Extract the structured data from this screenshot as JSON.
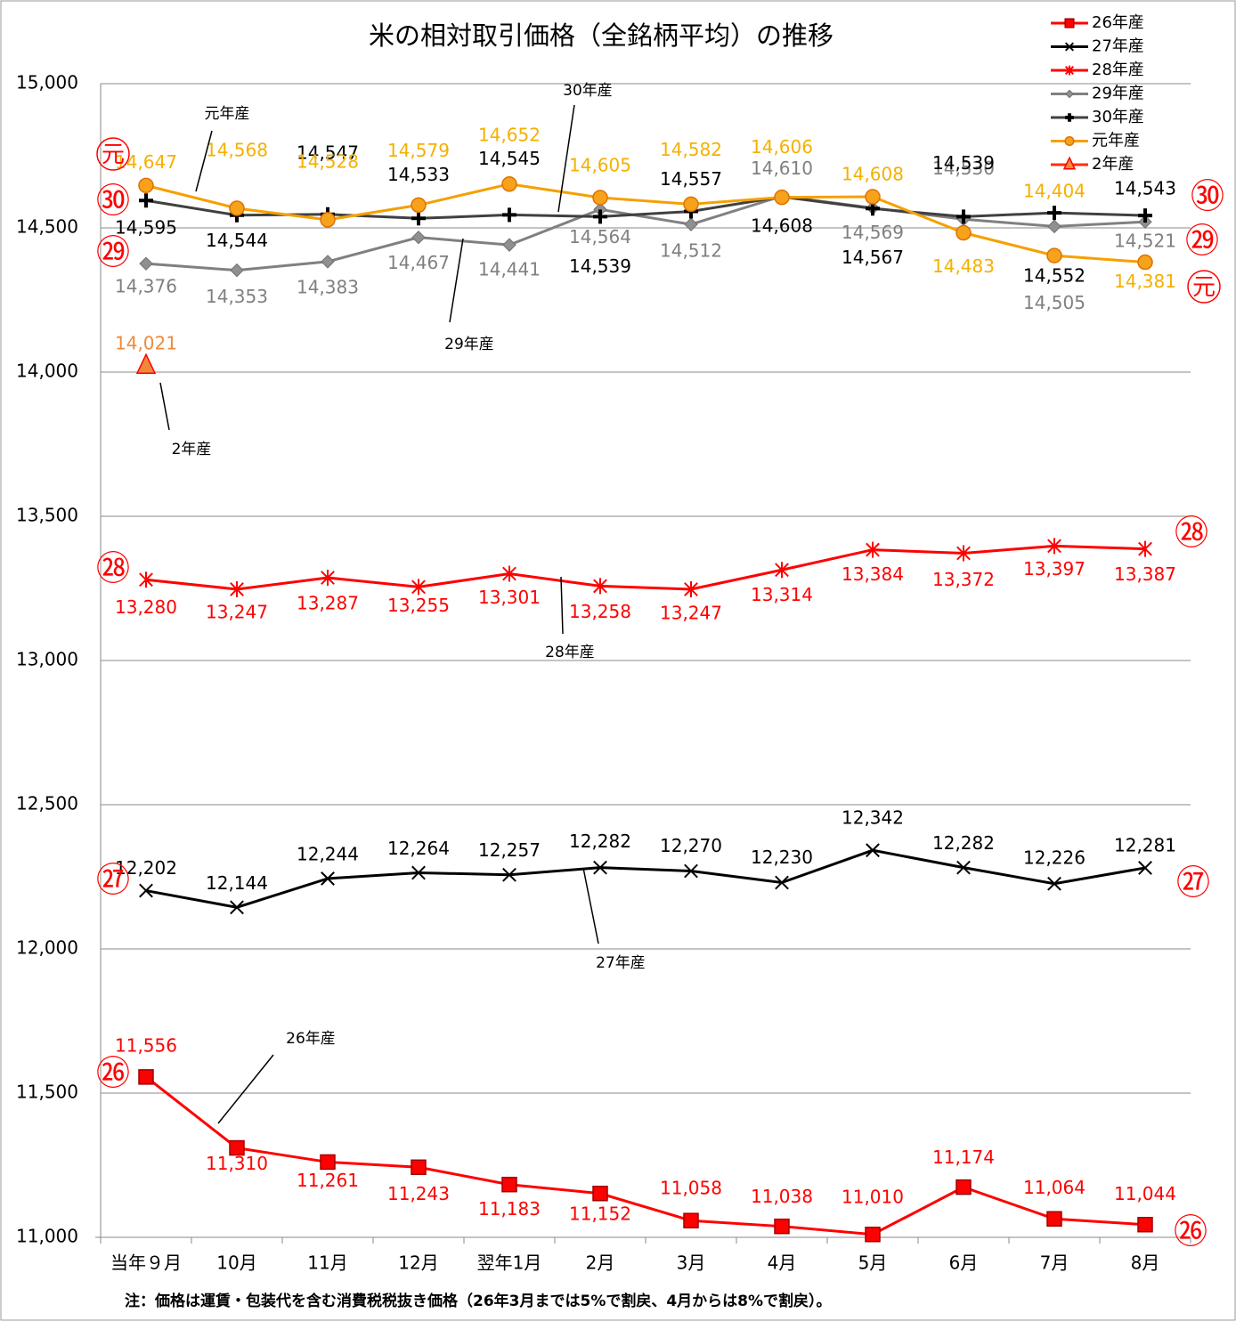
{
  "chart_data": {
    "type": "line",
    "title": "米の相対取引価格（全銘柄平均）の推移",
    "note": "注：価格は運賃・包装代を含む消費税税抜き価格（26年3月までは5%で割戻、4月からは8%で割戻）。",
    "categories": [
      "当年９月",
      "10月",
      "11月",
      "12月",
      "翌年1月",
      "2月",
      "3月",
      "4月",
      "5月",
      "6月",
      "7月",
      "8月"
    ],
    "ylim": [
      11000,
      15000
    ],
    "yticks": [
      {
        "value": 11000,
        "label": "11,000"
      },
      {
        "value": 11500,
        "label": "11,500"
      },
      {
        "value": 12000,
        "label": "12,000"
      },
      {
        "value": 12500,
        "label": "12,500"
      },
      {
        "value": 13000,
        "label": "13,000"
      },
      {
        "value": 13500,
        "label": "13,500"
      },
      {
        "value": 14000,
        "label": "14,000"
      },
      {
        "value": 14500,
        "label": "14,500"
      },
      {
        "value": 15000,
        "label": "15,000"
      }
    ],
    "grid": true,
    "legend": "top-right",
    "series": [
      {
        "name": "26年産",
        "color": "#ff0000",
        "label_color": "#ff0000",
        "marker": "square",
        "values": [
          11556,
          11310,
          11261,
          11243,
          11183,
          11152,
          11058,
          11038,
          11010,
          11174,
          11064,
          11044
        ],
        "value_labels": [
          "11,556",
          "11,310",
          "11,261",
          "11,243",
          "11,183",
          "11,152",
          "11,058",
          "11,038",
          "11,010",
          "11,174",
          "11,064",
          "11,044"
        ]
      },
      {
        "name": "27年産",
        "color": "#000000",
        "label_color": "#000000",
        "marker": "x",
        "values": [
          12202,
          12144,
          12244,
          12264,
          12257,
          12282,
          12270,
          12230,
          12342,
          12282,
          12226,
          12281
        ],
        "value_labels": [
          "12,202",
          "12,144",
          "12,244",
          "12,264",
          "12,257",
          "12,282",
          "12,270",
          "12,230",
          "12,342",
          "12,282",
          "12,226",
          "12,281"
        ]
      },
      {
        "name": "28年産",
        "color": "#ff0000",
        "label_color": "#ff0000",
        "marker": "asterisk",
        "values": [
          13280,
          13247,
          13287,
          13255,
          13301,
          13258,
          13247,
          13314,
          13384,
          13372,
          13397,
          13387
        ],
        "value_labels": [
          "13,280",
          "13,247",
          "13,287",
          "13,255",
          "13,301",
          "13,258",
          "13,247",
          "13,314",
          "13,384",
          "13,372",
          "13,397",
          "13,387"
        ]
      },
      {
        "name": "29年産",
        "color": "#808080",
        "label_color": "#808080",
        "marker": "diamond",
        "values": [
          14376,
          14353,
          14383,
          14467,
          14441,
          14564,
          14512,
          14610,
          14569,
          14530,
          14505,
          14521
        ],
        "value_labels": [
          "14,376",
          "14,353",
          "14,383",
          "14,467",
          "14,441",
          "14,564",
          "14,512",
          "14,610",
          "14,569",
          "14,530",
          "14,505",
          "14,521"
        ]
      },
      {
        "name": "30年産",
        "color": "#404040",
        "label_color": "#000000",
        "marker": "plus",
        "values": [
          14595,
          14544,
          14547,
          14533,
          14545,
          14539,
          14557,
          14608,
          14567,
          14539,
          14552,
          14543
        ],
        "value_labels": [
          "14,595",
          "14,544",
          "14,547",
          "14,533",
          "14,545",
          "14,539",
          "14,557",
          "14,608",
          "14,567",
          "14,539",
          "14,552",
          "14,543"
        ]
      },
      {
        "name": "元年産",
        "color": "#f5a000",
        "label_color": "#f5b000",
        "marker": "circle",
        "values": [
          14647,
          14568,
          14528,
          14579,
          14652,
          14605,
          14582,
          14606,
          14608,
          14483,
          14404,
          14381
        ],
        "value_labels": [
          "14,647",
          "14,568",
          "14,528",
          "14,579",
          "14,652",
          "14,605",
          "14,582",
          "14,606",
          "14,608",
          "14,483",
          "14,404",
          "14,381"
        ]
      },
      {
        "name": "2年産",
        "color": "#ff3000",
        "label_color": "#f08a3a",
        "marker": "triangle",
        "values": [
          14021,
          null,
          null,
          null,
          null,
          null,
          null,
          null,
          null,
          null,
          null,
          null
        ],
        "value_labels": [
          "14,021",
          null,
          null,
          null,
          null,
          null,
          null,
          null,
          null,
          null,
          null,
          null
        ]
      }
    ],
    "annotations": [
      "元年産",
      "30年産",
      "29年産",
      "2年産",
      "28年産",
      "27年産",
      "26年産"
    ],
    "side_labels": [
      "元",
      "㉚",
      "㉙",
      "㉘",
      "㉗",
      "㉖",
      "㉚",
      "㉙",
      "元",
      "㉘",
      "㉗",
      "㉖"
    ]
  }
}
